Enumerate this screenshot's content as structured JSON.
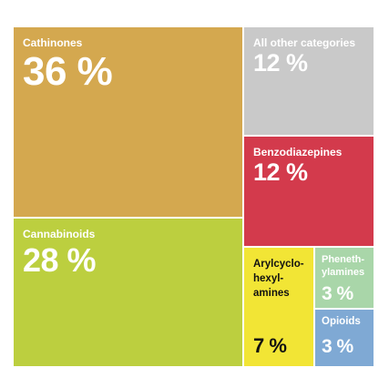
{
  "chart_data": {
    "type": "treemap",
    "title": "",
    "items": [
      {
        "label": "Cathinones",
        "value": 36,
        "display": "36 %",
        "color": "#d4a84f"
      },
      {
        "label": "Cannabinoids",
        "value": 28,
        "display": "28 %",
        "color": "#bccf3f"
      },
      {
        "label": "All other categories",
        "value": 12,
        "display": "12 %",
        "color": "#c9c9c9"
      },
      {
        "label": "Benzodiazepines",
        "value": 12,
        "display": "12 %",
        "color": "#d33a4c"
      },
      {
        "label": "Arylcyclo-\nhexyl-\namines",
        "value": 7,
        "display": "7 %",
        "color": "#f2e535"
      },
      {
        "label": "Phenethylamines",
        "value": 3,
        "display": "3 %",
        "color": "#a9d6a9"
      },
      {
        "label": "Opioids",
        "value": 3,
        "display": "3 %",
        "color": "#7fa9d4"
      }
    ]
  }
}
